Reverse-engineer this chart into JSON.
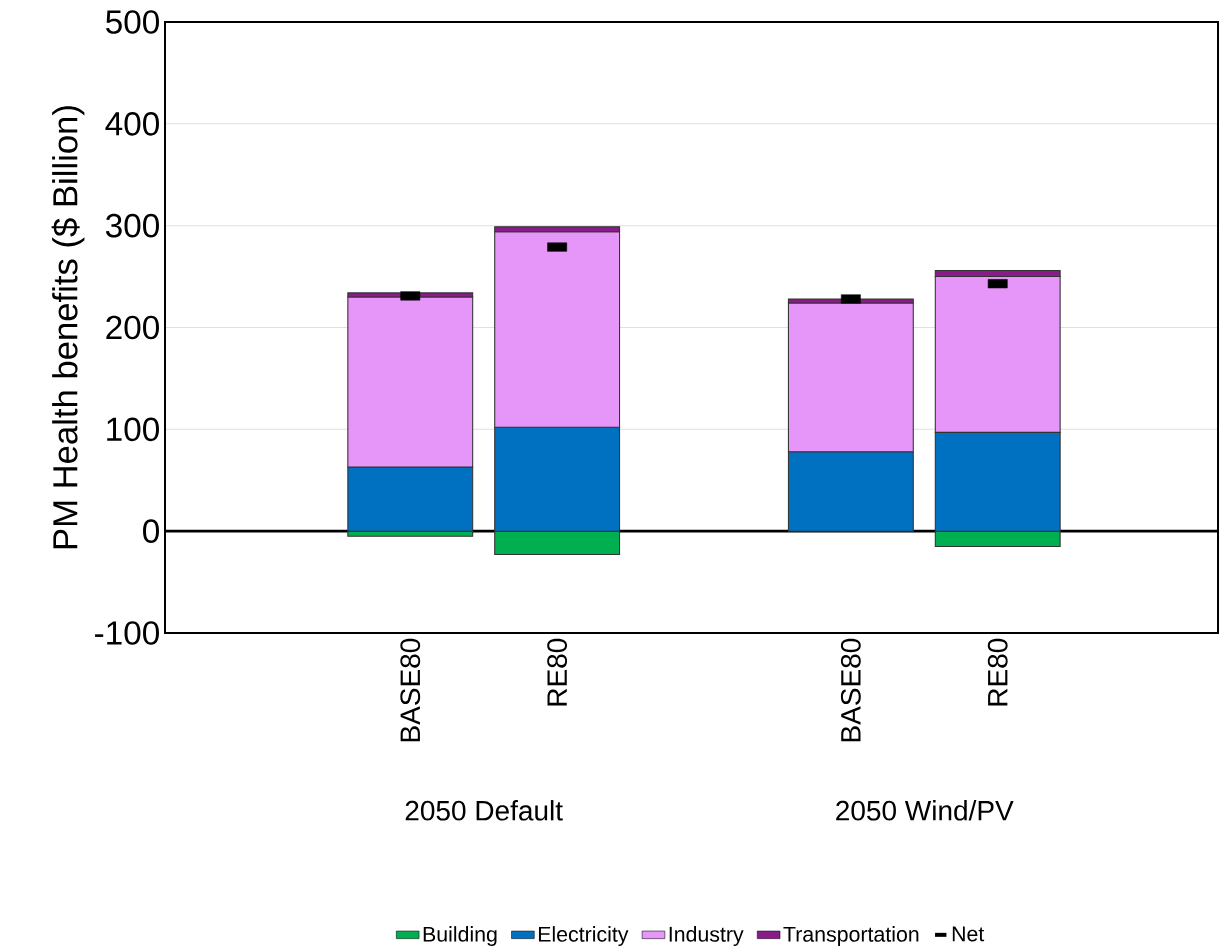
{
  "chart_data": {
    "type": "bar",
    "stacked": true,
    "ylabel": "PM Health benefits ($ Billion)",
    "categories": [
      null,
      "BASE80",
      "RE80",
      null,
      "BASE80",
      "RE80"
    ],
    "series": [
      {
        "name": "Building",
        "color": "#00b050",
        "values": [
          null,
          -5,
          -23,
          null,
          null,
          -15
        ]
      },
      {
        "name": "Electricity",
        "color": "#0070c0",
        "values": [
          null,
          63,
          102,
          null,
          78,
          97
        ]
      },
      {
        "name": "Industry",
        "color": "#e695f9",
        "values": [
          null,
          167,
          192,
          null,
          146,
          153
        ]
      },
      {
        "name": "Transportation",
        "color": "#8b1a8b",
        "values": [
          null,
          4,
          5,
          null,
          4,
          6
        ]
      },
      {
        "name": "Net",
        "type": "scatter",
        "color": "#000000",
        "values": [
          null,
          231,
          279,
          null,
          228,
          243
        ]
      }
    ],
    "annotations": [
      "2050 Default",
      "2050 Wind/PV"
    ],
    "ref_lines": [
      {
        "axis": "y",
        "value": 0,
        "color": "#000000"
      }
    ],
    "ylim": [
      -100,
      500
    ],
    "yticks": [
      -100,
      0,
      100,
      200,
      300,
      400,
      500
    ],
    "grid": "y",
    "legend": "bottom"
  }
}
